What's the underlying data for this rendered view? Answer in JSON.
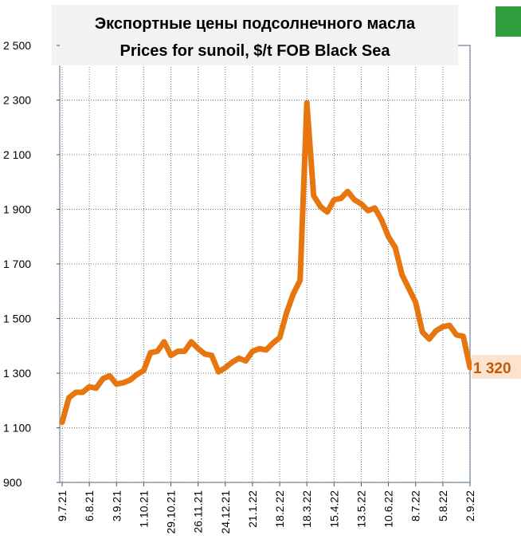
{
  "chart_data": {
    "type": "line",
    "title": "Экспортные цены подсолнечного масла",
    "subtitle": "Prices for sunoil, $/t FOB Black Sea",
    "categories": [
      "9.7.21",
      null,
      null,
      null,
      "6.8.21",
      null,
      null,
      null,
      "3.9.21",
      null,
      null,
      null,
      "1.10.21",
      null,
      null,
      null,
      "29.10.21",
      null,
      null,
      null,
      "26.11.21",
      null,
      null,
      null,
      "24.12.21",
      null,
      null,
      null,
      "21.1.22",
      null,
      null,
      null,
      "18.2.22",
      null,
      null,
      null,
      "18.3.22",
      null,
      null,
      null,
      "15.4.22",
      null,
      null,
      null,
      "13.5.22",
      null,
      null,
      null,
      "10.6.22",
      null,
      null,
      null,
      "8.7.22",
      null,
      null,
      null,
      "5.8.22",
      null,
      null,
      null,
      "2.9.22"
    ],
    "series": [
      {
        "color": "#e8760f",
        "values": [
          1120,
          1210,
          1230,
          1230,
          1250,
          1245,
          1280,
          1290,
          1260,
          1265,
          1275,
          1295,
          1310,
          1375,
          1380,
          1415,
          1365,
          1380,
          1380,
          1415,
          1390,
          1370,
          1365,
          1305,
          1320,
          1340,
          1355,
          1345,
          1380,
          1390,
          1385,
          1410,
          1430,
          1520,
          1590,
          1640,
          2290,
          1950,
          1910,
          1890,
          1935,
          1940,
          1965,
          1935,
          1920,
          1895,
          1905,
          1860,
          1800,
          1760,
          1660,
          1610,
          1560,
          1450,
          1425,
          1455,
          1470,
          1475,
          1440,
          1435,
          1320
        ],
        "value_labels": [
          null,
          null,
          null,
          null,
          null,
          null,
          null,
          null,
          null,
          null,
          null,
          null,
          null,
          null,
          null,
          null,
          null,
          null,
          null,
          null,
          null,
          null,
          null,
          null,
          null,
          null,
          null,
          null,
          null,
          null,
          null,
          null,
          null,
          null,
          null,
          null,
          null,
          null,
          null,
          null,
          null,
          null,
          null,
          null,
          null,
          null,
          null,
          null,
          null,
          null,
          null,
          null,
          null,
          null,
          null,
          null,
          null,
          null,
          null,
          null,
          "1 320"
        ]
      }
    ],
    "ylim": [
      900,
      2500
    ],
    "yticks": [
      900,
      {
        "value": 1100,
        "label": "1 100"
      },
      {
        "value": 1300,
        "label": "1 300"
      },
      {
        "value": 1500,
        "label": "1 500"
      },
      {
        "value": 1700,
        "label": "1 700"
      },
      {
        "value": 1900,
        "label": "1 900"
      },
      {
        "value": 2100,
        "label": "2 100"
      },
      {
        "value": 2300,
        "label": "2 300"
      },
      {
        "value": 2500,
        "label": "2 500"
      }
    ],
    "grid": true
  }
}
